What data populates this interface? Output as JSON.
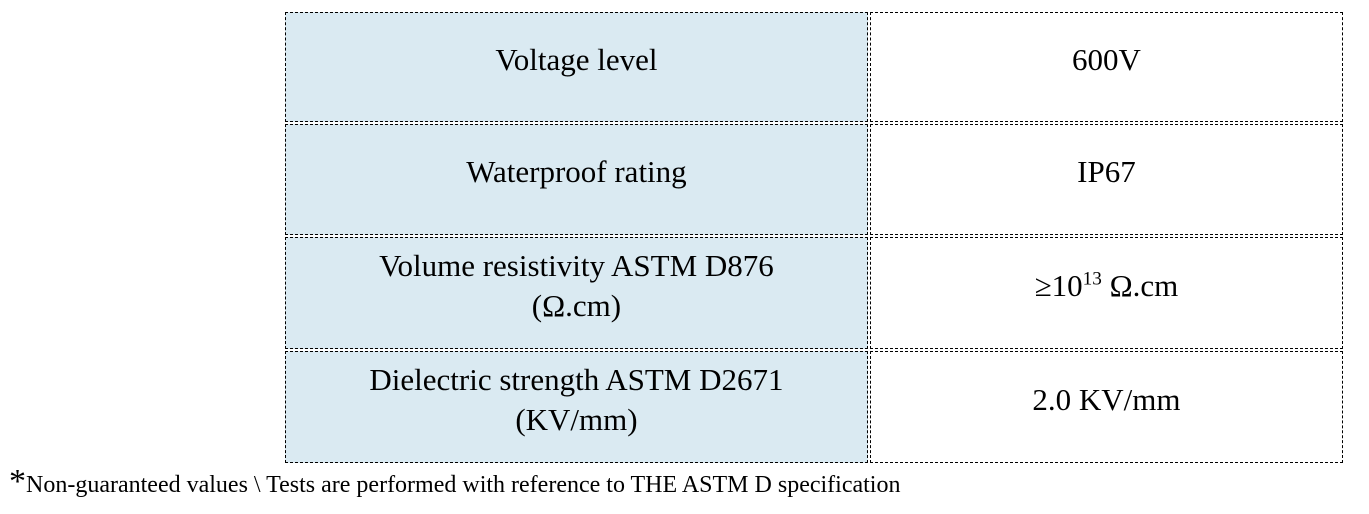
{
  "table": {
    "columns": {
      "label_col_bg": "#daeaf2",
      "value_col_bg": "#ffffff",
      "border_color": "#000000",
      "border_style": "dash-dot"
    },
    "rows": [
      {
        "label_line1": "Voltage level",
        "label_line2": "",
        "value_pre": "600V",
        "value_sup": "",
        "value_post": ""
      },
      {
        "label_line1": "Waterproof rating",
        "label_line2": "",
        "value_pre": "IP67",
        "value_sup": "",
        "value_post": ""
      },
      {
        "label_line1": "Volume resistivity ASTM D876",
        "label_line2": "(Ω.cm)",
        "value_pre": "≥10",
        "value_sup": "13",
        "value_post": " Ω.cm"
      },
      {
        "label_line1": "Dielectric strength ASTM D2671",
        "label_line2": "(KV/mm)",
        "value_pre": "2.0 KV/mm",
        "value_sup": "",
        "value_post": ""
      }
    ]
  },
  "footnote": {
    "marker": "*",
    "text": "Non-guaranteed values \\ Tests are performed with reference to THE ASTM D specification"
  }
}
